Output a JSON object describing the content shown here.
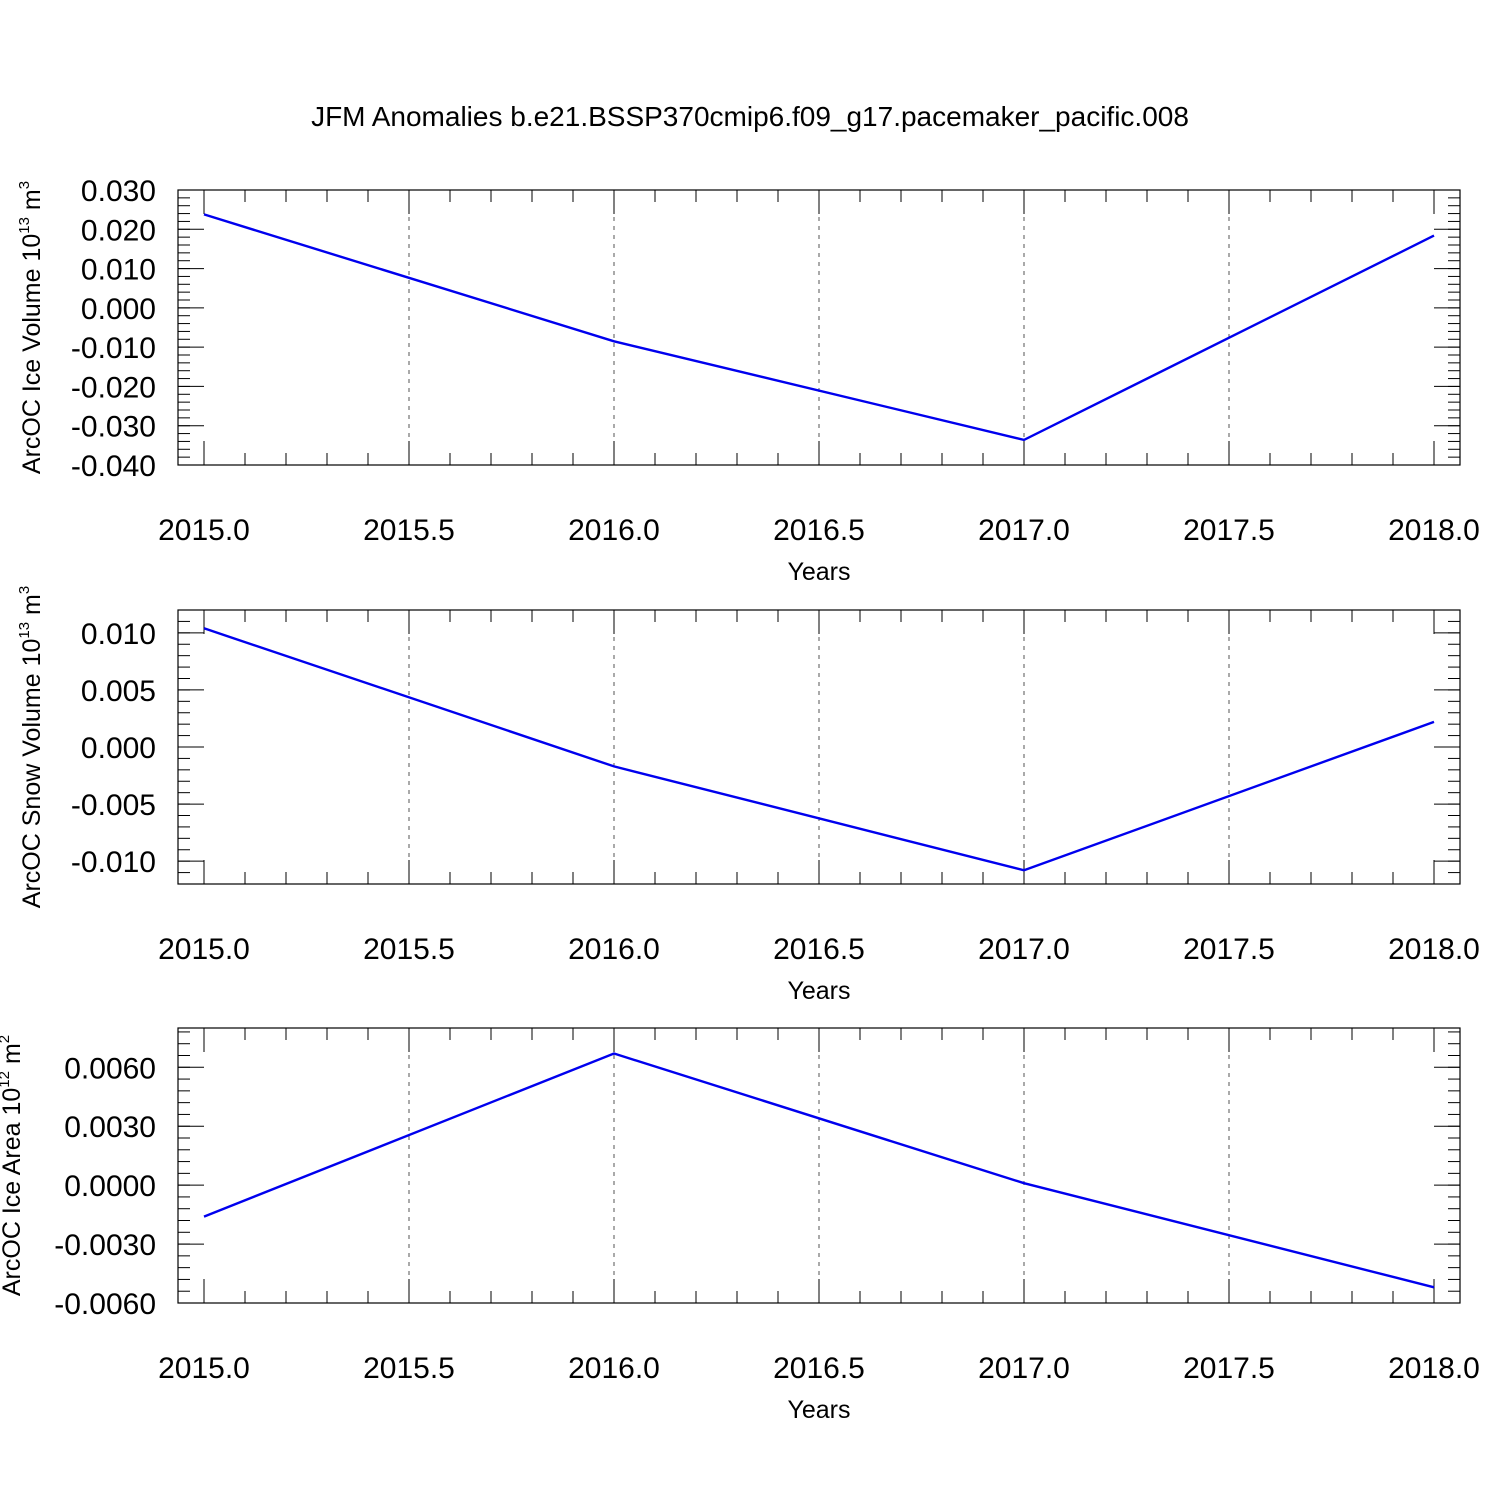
{
  "title": "JFM Anomalies b.e21.BSSP370cmip6.f09_g17.pacemaker_pacific.008",
  "chart_data": [
    {
      "type": "line",
      "xlabel": "Years",
      "ylabel": {
        "text": "ArcOC Ice Volume 10",
        "sup1": "13",
        "mid": " m",
        "sup2": "3"
      },
      "xlim": [
        2015.0,
        2018.0
      ],
      "ylim": [
        -0.04,
        0.03
      ],
      "x_ticks": [
        "2015.0",
        "2015.5",
        "2016.0",
        "2016.5",
        "2017.0",
        "2017.5",
        "2018.0"
      ],
      "y_ticks": [
        "0.030",
        "0.020",
        "0.010",
        "0.000",
        "-0.010",
        "-0.020",
        "-0.030",
        "-0.040"
      ],
      "y_tick_values": [
        0.03,
        0.02,
        0.01,
        0.0,
        -0.01,
        -0.02,
        -0.03,
        -0.04
      ],
      "y_minor_step": 0.002,
      "grid": "x-dashed",
      "series": [
        {
          "color": "#0000ee",
          "x": [
            2015,
            2016,
            2017,
            2018
          ],
          "values": [
            0.0238,
            -0.0085,
            -0.0336,
            0.0184
          ]
        }
      ]
    },
    {
      "type": "line",
      "xlabel": "Years",
      "ylabel": {
        "text": "ArcOC Snow Volume 10",
        "sup1": "13",
        "mid": " m",
        "sup2": "3"
      },
      "xlim": [
        2015.0,
        2018.0
      ],
      "ylim": [
        -0.012,
        0.012
      ],
      "x_ticks": [
        "2015.0",
        "2015.5",
        "2016.0",
        "2016.5",
        "2017.0",
        "2017.5",
        "2018.0"
      ],
      "y_ticks": [
        "0.010",
        "0.005",
        "0.000",
        "-0.005",
        "-0.010"
      ],
      "y_tick_values": [
        0.01,
        0.005,
        0.0,
        -0.005,
        -0.01
      ],
      "y_minor_step": 0.001,
      "grid": "x-dashed",
      "series": [
        {
          "color": "#0000ee",
          "x": [
            2015,
            2016,
            2017,
            2018
          ],
          "values": [
            0.0104,
            -0.0017,
            -0.0108,
            0.0022
          ]
        }
      ]
    },
    {
      "type": "line",
      "xlabel": "Years",
      "ylabel": {
        "text": "ArcOC Ice Area 10",
        "sup1": "12",
        "mid": " m",
        "sup2": "2"
      },
      "xlim": [
        2015.0,
        2018.0
      ],
      "ylim": [
        -0.006,
        0.008
      ],
      "x_ticks": [
        "2015.0",
        "2015.5",
        "2016.0",
        "2016.5",
        "2017.0",
        "2017.5",
        "2018.0"
      ],
      "y_ticks": [
        "0.0060",
        "0.0030",
        "0.0000",
        "-0.0030",
        "-0.0060"
      ],
      "y_tick_values": [
        0.006,
        0.003,
        0.0,
        -0.003,
        -0.006
      ],
      "y_minor_step": 0.0006,
      "grid": "x-dashed",
      "series": [
        {
          "color": "#0000ee",
          "x": [
            2015,
            2016,
            2017,
            2018
          ],
          "values": [
            -0.0016,
            0.0067,
            0.0001,
            -0.0052
          ]
        }
      ]
    }
  ]
}
